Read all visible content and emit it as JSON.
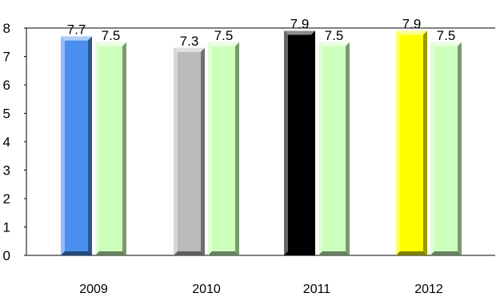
{
  "chart_data": {
    "type": "bar",
    "categories": [
      "2009",
      "2010",
      "2011",
      "2012"
    ],
    "series": [
      {
        "values": [
          7.7,
          7.3,
          7.9,
          7.9
        ],
        "colors": [
          "#4a8fef",
          "#bbbbbb",
          "#000000",
          "#ffff00"
        ]
      },
      {
        "values": [
          7.5,
          7.5,
          7.5,
          7.5
        ],
        "colors": [
          "#ccffbb",
          "#ccffbb",
          "#ccffbb",
          "#ccffbb"
        ]
      }
    ],
    "data_labels": [
      [
        "7.7",
        "7.3",
        "7.9",
        "7.9"
      ],
      [
        "7.5",
        "7.5",
        "7.5",
        "7.5"
      ]
    ],
    "yticks": [
      "0",
      "1",
      "2",
      "3",
      "4",
      "5",
      "6",
      "7",
      "8"
    ],
    "ylim": [
      0,
      8
    ],
    "title": "",
    "xlabel": "",
    "ylabel": "",
    "grid": false,
    "legend": "none",
    "style": "3d-bevel"
  }
}
